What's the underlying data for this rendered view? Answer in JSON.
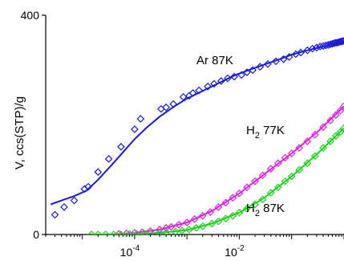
{
  "chart_data": {
    "type": "scatter",
    "title": "",
    "xlabel": "",
    "ylabel": "V, ccs(STP)/g",
    "x_scale": "log",
    "xlim": [
      2e-06,
      1
    ],
    "ylim": [
      0,
      400
    ],
    "y_ticks": [
      {
        "value": 0,
        "label": "0"
      },
      {
        "value": 400,
        "label": "400"
      }
    ],
    "x_ticks": [
      {
        "value": 0.0001,
        "base": "10",
        "exp": "-4"
      },
      {
        "value": 0.01,
        "base": "10",
        "exp": "-2"
      }
    ],
    "grid": false,
    "legend": "none",
    "series": [
      {
        "name": "Ar 87K",
        "label_parts": {
          "main": "Ar 87K",
          "sub": ""
        },
        "color": "#1a1adc",
        "marker": "diamond",
        "points": [
          [
            3e-06,
            36
          ],
          [
            4.5e-06,
            50
          ],
          [
            7e-06,
            62
          ],
          [
            1.1e-05,
            83
          ],
          [
            1.3e-05,
            87
          ],
          [
            2e-05,
            114
          ],
          [
            3.2e-05,
            138
          ],
          [
            5.5e-05,
            160
          ],
          [
            0.0001,
            192
          ],
          [
            0.00013,
            211
          ],
          [
            0.00032,
            229
          ],
          [
            0.0004,
            232
          ],
          [
            0.00055,
            238
          ],
          [
            0.00085,
            251
          ],
          [
            0.0011,
            253
          ],
          [
            0.0013,
            258
          ],
          [
            0.0017,
            263
          ],
          [
            0.0025,
            270
          ],
          [
            0.0033,
            275
          ],
          [
            0.0045,
            280
          ],
          [
            0.006,
            285
          ],
          [
            0.008,
            288
          ],
          [
            0.011,
            291
          ],
          [
            0.014,
            296
          ],
          [
            0.018,
            300
          ],
          [
            0.025,
            306
          ],
          [
            0.035,
            311
          ],
          [
            0.05,
            316
          ],
          [
            0.07,
            320
          ],
          [
            0.09,
            324
          ],
          [
            0.12,
            329
          ],
          [
            0.15,
            332
          ],
          [
            0.2,
            336
          ],
          [
            0.25,
            339
          ],
          [
            0.3,
            341
          ],
          [
            0.35,
            343
          ],
          [
            0.4,
            344
          ],
          [
            0.45,
            345
          ],
          [
            0.5,
            346
          ],
          [
            0.55,
            347
          ],
          [
            0.6,
            348
          ],
          [
            0.65,
            349
          ],
          [
            0.7,
            350
          ],
          [
            0.75,
            350
          ],
          [
            0.8,
            351
          ],
          [
            0.85,
            352
          ],
          [
            0.9,
            352
          ],
          [
            0.95,
            353
          ],
          [
            1,
            353
          ]
        ],
        "fit": [
          [
            2.5e-06,
            55
          ],
          [
            4e-06,
            62
          ],
          [
            7e-06,
            70
          ],
          [
            1.2e-05,
            80
          ],
          [
            2e-05,
            100
          ],
          [
            3.5e-05,
            125
          ],
          [
            6e-05,
            150
          ],
          [
            0.0001,
            174
          ],
          [
            0.00017,
            195
          ],
          [
            0.0003,
            215
          ],
          [
            0.0006,
            235
          ],
          [
            0.001,
            248
          ],
          [
            0.002,
            262
          ],
          [
            0.004,
            276
          ],
          [
            0.008,
            290
          ],
          [
            0.015,
            300
          ],
          [
            0.03,
            310
          ],
          [
            0.06,
            320
          ],
          [
            0.1,
            328
          ],
          [
            0.2,
            336
          ],
          [
            0.4,
            343
          ],
          [
            0.7,
            349
          ],
          [
            1,
            353
          ]
        ]
      },
      {
        "name": "H2 77K",
        "label_parts": {
          "main": "H",
          "sub": "2",
          "suffix": " 77K"
        },
        "color": "#e020e0",
        "marker": "diamond",
        "points": [
          [
            5e-05,
            1
          ],
          [
            7e-05,
            2
          ],
          [
            0.0001,
            3
          ],
          [
            0.00014,
            4
          ],
          [
            0.0002,
            6
          ],
          [
            0.0003,
            9
          ],
          [
            0.0004,
            12
          ],
          [
            0.0005,
            14
          ],
          [
            0.0007,
            18
          ],
          [
            0.001,
            22
          ],
          [
            0.0014,
            28
          ],
          [
            0.002,
            34
          ],
          [
            0.0028,
            41
          ],
          [
            0.004,
            50
          ],
          [
            0.0055,
            58
          ],
          [
            0.0075,
            67
          ],
          [
            0.01,
            75
          ],
          [
            0.014,
            86
          ],
          [
            0.02,
            97
          ],
          [
            0.028,
            108
          ],
          [
            0.04,
            120
          ],
          [
            0.055,
            130
          ],
          [
            0.075,
            140
          ],
          [
            0.1,
            148
          ],
          [
            0.14,
            158
          ],
          [
            0.2,
            170
          ],
          [
            0.28,
            182
          ],
          [
            0.4,
            196
          ],
          [
            0.55,
            208
          ],
          [
            0.7,
            218
          ],
          [
            0.85,
            226
          ],
          [
            1,
            234
          ]
        ],
        "fit": [
          [
            4e-05,
            0
          ],
          [
            0.0001,
            3
          ],
          [
            0.0003,
            9
          ],
          [
            0.001,
            22
          ],
          [
            0.003,
            43
          ],
          [
            0.01,
            75
          ],
          [
            0.03,
            110
          ],
          [
            0.1,
            148
          ],
          [
            0.3,
            186
          ],
          [
            1,
            234
          ]
        ]
      },
      {
        "name": "H2 87K",
        "label_parts": {
          "main": "H",
          "sub": "2",
          "suffix": " 87K"
        },
        "color": "#18d418",
        "marker": "diamond",
        "points": [
          [
            1.5e-05,
            0
          ],
          [
            2e-05,
            0
          ],
          [
            2.8e-05,
            0
          ],
          [
            4e-05,
            0
          ],
          [
            5.5e-05,
            0
          ],
          [
            8e-05,
            1
          ],
          [
            0.00011,
            1
          ],
          [
            0.00015,
            2
          ],
          [
            0.0002,
            2
          ],
          [
            0.0003,
            3
          ],
          [
            0.0004,
            4
          ],
          [
            0.0006,
            5
          ],
          [
            0.0008,
            7
          ],
          [
            0.0011,
            9
          ],
          [
            0.0015,
            12
          ],
          [
            0.002,
            15
          ],
          [
            0.003,
            20
          ],
          [
            0.004,
            24
          ],
          [
            0.0055,
            29
          ],
          [
            0.0075,
            34
          ],
          [
            0.01,
            40
          ],
          [
            0.014,
            47
          ],
          [
            0.02,
            55
          ],
          [
            0.028,
            64
          ],
          [
            0.04,
            76
          ],
          [
            0.055,
            86
          ],
          [
            0.075,
            97
          ],
          [
            0.1,
            106
          ],
          [
            0.14,
            118
          ],
          [
            0.2,
            130
          ],
          [
            0.28,
            143
          ],
          [
            0.4,
            158
          ],
          [
            0.55,
            170
          ],
          [
            0.7,
            180
          ],
          [
            0.85,
            187
          ],
          [
            1,
            194
          ]
        ],
        "fit": [
          [
            1.5e-05,
            0
          ],
          [
            0.0001,
            1
          ],
          [
            0.0003,
            3
          ],
          [
            0.001,
            8
          ],
          [
            0.003,
            20
          ],
          [
            0.01,
            40
          ],
          [
            0.03,
            67
          ],
          [
            0.1,
            106
          ],
          [
            0.3,
            146
          ],
          [
            1,
            194
          ]
        ]
      }
    ]
  }
}
